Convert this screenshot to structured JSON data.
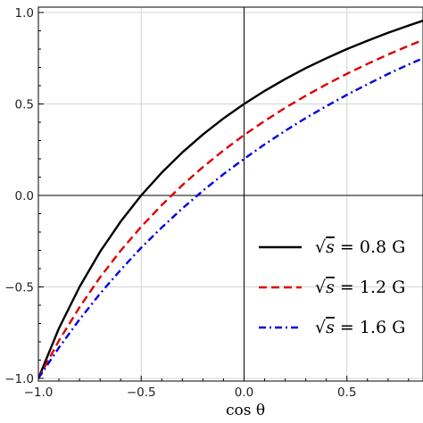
{
  "chart_data": {
    "type": "line",
    "title": "",
    "xlabel": "cos θ",
    "ylabel": "",
    "xlim": [
      -1.0,
      0.87
    ],
    "ylim": [
      -1.0,
      1.0
    ],
    "grid": true,
    "legend_position": "bottom-right",
    "x_ticks": [
      "−1.0",
      "−0.5",
      "0.0",
      "0.5"
    ],
    "y_ticks": [
      "−1.0",
      "−0.5",
      "0.0",
      "0.5",
      "1.0"
    ],
    "x_tick_values": [
      -1.0,
      -0.5,
      0.0,
      0.5
    ],
    "y_tick_values": [
      -1.0,
      -0.5,
      0.0,
      0.5,
      1.0
    ],
    "x": [
      -1.0,
      -0.9,
      -0.8,
      -0.7,
      -0.6,
      -0.5,
      -0.4,
      -0.3,
      -0.2,
      -0.1,
      0.0,
      0.1,
      0.2,
      0.3,
      0.4,
      0.5,
      0.6,
      0.7,
      0.8,
      0.87
    ],
    "series": [
      {
        "name": "√s = 0.8 G",
        "sqrt_s": "0.8 G",
        "color": "#000000",
        "dash": "solid",
        "values": [
          -1.0,
          -0.727,
          -0.5,
          -0.308,
          -0.143,
          0.0,
          0.125,
          0.235,
          0.333,
          0.421,
          0.5,
          0.571,
          0.636,
          0.696,
          0.75,
          0.8,
          0.846,
          0.889,
          0.929,
          0.955
        ]
      },
      {
        "name": "√s = 1.2 G",
        "sqrt_s": "1.2 G",
        "color": "#dd0000",
        "dash": "dashed",
        "values": [
          -1.0,
          -0.794,
          -0.611,
          -0.448,
          -0.302,
          -0.171,
          -0.052,
          0.056,
          0.155,
          0.246,
          0.33,
          0.407,
          0.479,
          0.545,
          0.607,
          0.665,
          0.719,
          0.77,
          0.818,
          0.85
        ]
      },
      {
        "name": "√s = 1.6 G",
        "sqrt_s": "1.6 G",
        "color": "#0000dd",
        "dash": "dashdot",
        "values": [
          -1.0,
          -0.832,
          -0.678,
          -0.537,
          -0.407,
          -0.286,
          -0.175,
          -0.071,
          0.026,
          0.116,
          0.2,
          0.279,
          0.353,
          0.423,
          0.488,
          0.55,
          0.608,
          0.664,
          0.716,
          0.75
        ]
      }
    ]
  },
  "legend": {
    "entries": [
      {
        "prefix": "√",
        "var": "s",
        "suffix": " = 0.8 G"
      },
      {
        "prefix": "√",
        "var": "s",
        "suffix": " = 1.2 G"
      },
      {
        "prefix": "√",
        "var": "s",
        "suffix": " = 1.6 G"
      }
    ]
  }
}
